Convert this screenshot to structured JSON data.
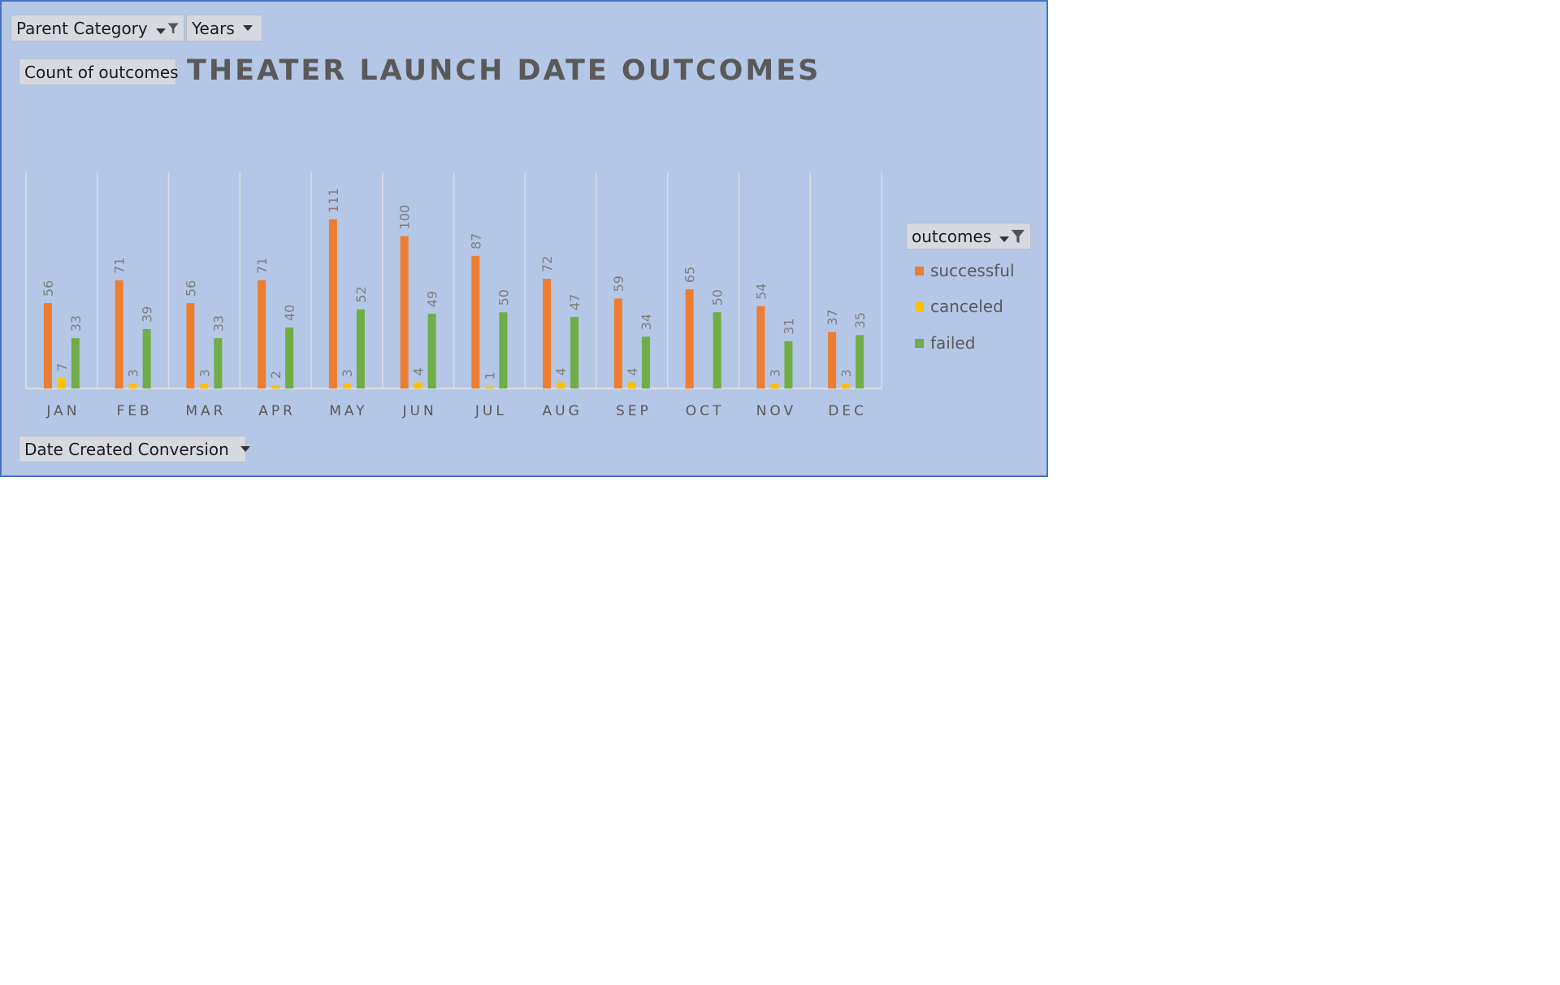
{
  "filters": {
    "parent_category": "Parent Category",
    "years": "Years",
    "values_field": "Count of outcomes",
    "axis_field": "Date Created Conversion",
    "legend_field": "outcomes"
  },
  "colors": {
    "background": "#b4c7e7",
    "successful": "#ed7d31",
    "canceled": "#ffc000",
    "failed": "#70ad47"
  },
  "chart_data": {
    "type": "bar",
    "title": "THEATER LAUNCH DATE OUTCOMES",
    "categories": [
      "JAN",
      "FEB",
      "MAR",
      "APR",
      "MAY",
      "JUN",
      "JUL",
      "AUG",
      "SEP",
      "OCT",
      "NOV",
      "DEC"
    ],
    "series": [
      {
        "name": "successful",
        "values": [
          56,
          71,
          56,
          71,
          111,
          100,
          87,
          72,
          59,
          65,
          54,
          37
        ],
        "labels": [
          "56",
          "71",
          "56",
          "71",
          "111",
          "100",
          "87",
          "72",
          "59",
          "65",
          "54",
          "37"
        ]
      },
      {
        "name": "canceled",
        "values": [
          7,
          3,
          3,
          2,
          3,
          4,
          1,
          4,
          4,
          0,
          3,
          3
        ],
        "labels": [
          "7",
          "3",
          "3",
          "2",
          "3",
          "4",
          "1",
          "4",
          "4",
          "",
          "3",
          "3"
        ]
      },
      {
        "name": "failed",
        "values": [
          33,
          39,
          33,
          40,
          52,
          49,
          50,
          47,
          34,
          50,
          31,
          35
        ],
        "labels": [
          "33",
          "39",
          "33",
          "40",
          "52",
          "49",
          "50",
          "47",
          "34",
          "50",
          "31",
          "35"
        ]
      }
    ],
    "ylim": [
      0,
      122
    ],
    "legend": "right",
    "grid": "vertical category separators"
  }
}
